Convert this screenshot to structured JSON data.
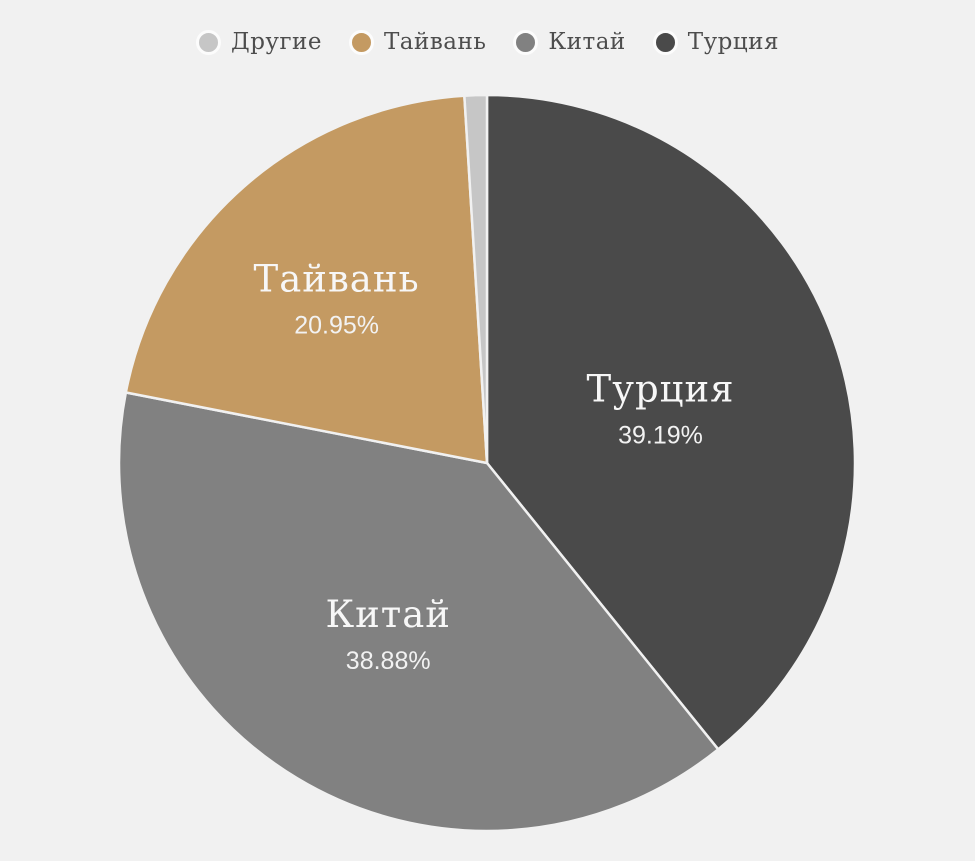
{
  "chart_data": {
    "type": "pie",
    "title": "",
    "unit": "%",
    "categories": [
      "Турция",
      "Китай",
      "Тайвань",
      "Другие"
    ],
    "values": [
      39.19,
      38.88,
      20.95,
      0.98
    ],
    "slices": [
      {
        "id": "turkey",
        "label": "Турция",
        "value": 39.19,
        "pct_label": "39.19%",
        "color": "#4a4a4a",
        "label_r": 0.5
      },
      {
        "id": "china",
        "label": "Китай",
        "value": 38.88,
        "pct_label": "38.88%",
        "color": "#818181",
        "label_r": 0.52
      },
      {
        "id": "taiwan",
        "label": "Тайвань",
        "value": 20.95,
        "pct_label": "20.95%",
        "color": "#c49a62",
        "label_r": 0.62
      },
      {
        "id": "others",
        "label": "Другие",
        "value": 0.98,
        "pct_label": "",
        "color": "#c6c6c6",
        "label_r": 0
      }
    ],
    "start_angle_deg": 0,
    "direction": "clockwise",
    "legend": {
      "position": "top",
      "order": [
        "others",
        "taiwan",
        "china",
        "turkey"
      ]
    },
    "colors": {
      "background": "#f1f1f1",
      "slice_border": "#f1f1f1",
      "slice_label_text": "#f7f7f7",
      "legend_text": "#4d4d4d",
      "legend_marker_ring": "#fcfcfc"
    }
  }
}
